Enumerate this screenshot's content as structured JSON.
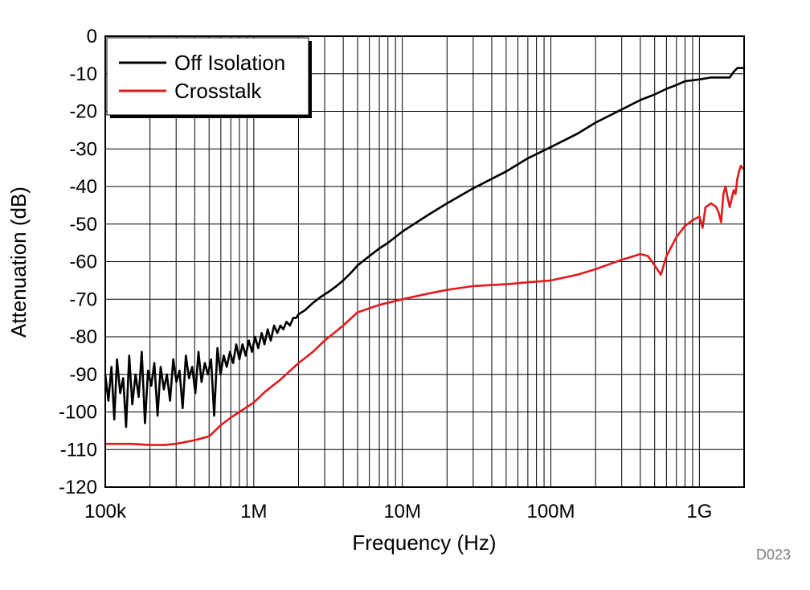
{
  "chart_data": {
    "type": "line",
    "xlabel": "Frequency (Hz)",
    "ylabel": "Attenuation (dB)",
    "x_scale": "log",
    "xlim": [
      100000,
      2000000000
    ],
    "ylim": [
      -120,
      0
    ],
    "grid": true,
    "legend_position": "top-left",
    "x_ticks": [
      {
        "value": 100000,
        "label": "100k"
      },
      {
        "value": 1000000,
        "label": "1M"
      },
      {
        "value": 10000000,
        "label": "10M"
      },
      {
        "value": 100000000,
        "label": "100M"
      },
      {
        "value": 1000000000,
        "label": "1G"
      }
    ],
    "y_ticks": [
      0,
      -10,
      -20,
      -30,
      -40,
      -50,
      -60,
      -70,
      -80,
      -90,
      -100,
      -110,
      -120
    ],
    "series": [
      {
        "name": "Off Isolation",
        "color": "#000000",
        "x": [
          100000,
          105000,
          110000,
          115000,
          120000,
          126000,
          132000,
          138000,
          145000,
          152000,
          160000,
          168000,
          176000,
          185000,
          194000,
          204000,
          214000,
          225000,
          236000,
          248000,
          260000,
          273000,
          287000,
          301000,
          316000,
          332000,
          349000,
          366000,
          385000,
          404000,
          424000,
          445000,
          468000,
          491000,
          516000,
          541000,
          569000,
          597000,
          627000,
          658000,
          691000,
          726000,
          762000,
          800000,
          840000,
          882000,
          926000,
          973000,
          1020000,
          1070000,
          1130000,
          1180000,
          1240000,
          1300000,
          1370000,
          1440000,
          1510000,
          1580000,
          1660000,
          1750000,
          1840000,
          1930000,
          2000000,
          2200000,
          2500000,
          2800000,
          3200000,
          3600000,
          4000000,
          4500000,
          5000000,
          6000000,
          7000000,
          8000000,
          10000000,
          15000000,
          20000000,
          30000000,
          50000000,
          70000000,
          100000000,
          150000000,
          200000000,
          300000000,
          400000000,
          500000000,
          600000000,
          700000000,
          800000000,
          1000000000,
          1200000000,
          1400000000,
          1600000000,
          1700000000,
          1800000000,
          1900000000,
          2000000000
        ],
        "y": [
          -90,
          -97,
          -88,
          -102,
          -86,
          -95,
          -91,
          -104,
          -85,
          -98,
          -90,
          -96,
          -84,
          -103,
          -89,
          -93,
          -87,
          -101,
          -88,
          -94,
          -90,
          -97,
          -86,
          -92,
          -89,
          -99,
          -85,
          -91,
          -88,
          -95,
          -84,
          -92,
          -87,
          -90,
          -86,
          -101,
          -83,
          -90,
          -85,
          -88,
          -84,
          -87,
          -82,
          -86,
          -82,
          -85,
          -81,
          -84,
          -80,
          -83,
          -79,
          -82,
          -78,
          -81,
          -77,
          -79,
          -77,
          -78,
          -76,
          -77,
          -75,
          -75,
          -74,
          -73,
          -71,
          -69.5,
          -68,
          -66.5,
          -65,
          -63,
          -61,
          -58.5,
          -56.5,
          -55,
          -52,
          -47.5,
          -44.5,
          -40.5,
          -36,
          -32.5,
          -29.5,
          -26,
          -23,
          -19.5,
          -17,
          -15.5,
          -14,
          -13,
          -12,
          -11.5,
          -11,
          -11,
          -11,
          -9.5,
          -8.5,
          -8.5,
          -8.5
        ]
      },
      {
        "name": "Crosstalk",
        "color": "#e31a1c",
        "x": [
          100000,
          150000,
          200000,
          250000,
          300000,
          400000,
          500000,
          600000,
          700000,
          800000,
          1000000,
          1200000,
          1500000,
          2000000,
          2500000,
          3000000,
          4000000,
          5000000,
          7000000,
          10000000,
          15000000,
          20000000,
          30000000,
          50000000,
          70000000,
          100000000,
          150000000,
          200000000,
          300000000,
          400000000,
          450000000,
          500000000,
          550000000,
          600000000,
          700000000,
          800000000,
          900000000,
          950000000,
          1000000000,
          1050000000,
          1100000000,
          1200000000,
          1300000000,
          1350000000,
          1400000000,
          1450000000,
          1500000000,
          1550000000,
          1600000000,
          1700000000,
          1750000000,
          1800000000,
          1850000000,
          1900000000,
          2000000000
        ],
        "y": [
          -108.5,
          -108.5,
          -108.8,
          -108.8,
          -108.5,
          -107.5,
          -106.5,
          -103.5,
          -101.5,
          -100,
          -97.5,
          -94.5,
          -91.5,
          -87,
          -84,
          -81,
          -77,
          -73.5,
          -71.5,
          -70,
          -68.5,
          -67.5,
          -66.5,
          -66,
          -65.5,
          -65,
          -63.5,
          -62,
          -59.5,
          -58,
          -58.5,
          -61,
          -63.5,
          -58.5,
          -53.5,
          -50.5,
          -49,
          -48.5,
          -48,
          -51,
          -45.5,
          -44.5,
          -45.5,
          -47,
          -49.5,
          -42,
          -40,
          -43,
          -45.5,
          -41,
          -42,
          -38,
          -36,
          -34.5,
          -35.5
        ]
      }
    ],
    "note": "D023"
  }
}
